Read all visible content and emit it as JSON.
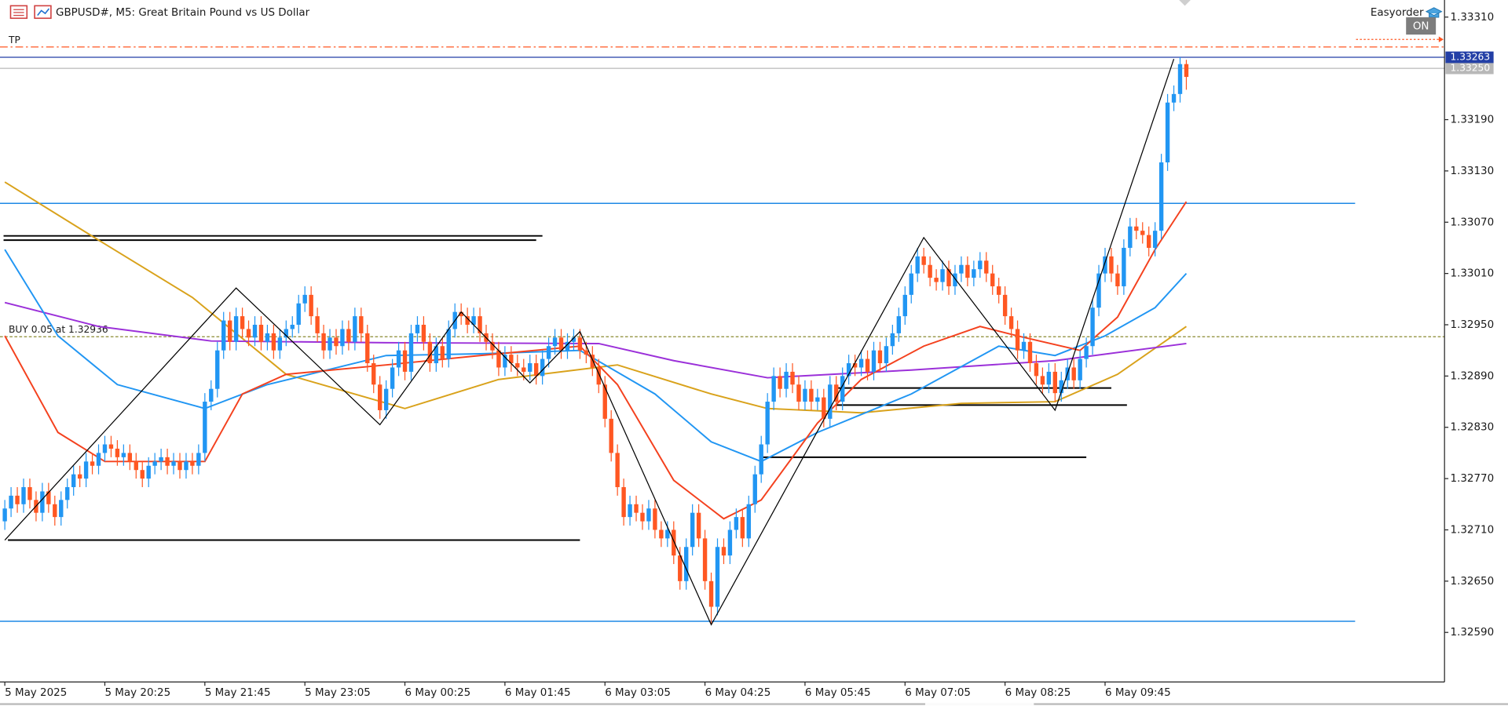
{
  "header": {
    "symbol_title": "GBPUSD#, M5:  Great Britain Pound vs US Dollar",
    "plugin": "Easyorder",
    "toggle": "ON"
  },
  "chart_data": {
    "type": "candlestick",
    "xlim": [
      -0.77,
      230.3
    ],
    "ylim": [
      1.32532,
      1.3333
    ],
    "xticks": [
      {
        "value": 0,
        "label": "5 May 2025"
      },
      {
        "value": 16,
        "label": "5 May 20:25"
      },
      {
        "value": 32,
        "label": "5 May 21:45"
      },
      {
        "value": 48,
        "label": "5 May 23:05"
      },
      {
        "value": 64,
        "label": "6 May 00:25"
      },
      {
        "value": 80,
        "label": "6 May 01:45"
      },
      {
        "value": 96,
        "label": "6 May 03:05"
      },
      {
        "value": 112,
        "label": "6 May 04:25"
      },
      {
        "value": 128,
        "label": "6 May 05:45"
      },
      {
        "value": 144,
        "label": "6 May 07:05"
      },
      {
        "value": 160,
        "label": "6 May 08:25"
      },
      {
        "value": 176,
        "label": "6 May 09:45"
      }
    ],
    "yticks": [
      {
        "value": 1.3331,
        "label": "1.33310"
      },
      {
        "value": 1.3319,
        "label": "1.33190"
      },
      {
        "value": 1.3313,
        "label": "1.33130"
      },
      {
        "value": 1.3307,
        "label": "1.33070"
      },
      {
        "value": 1.3301,
        "label": "1.33010"
      },
      {
        "value": 1.3295,
        "label": "1.32950"
      },
      {
        "value": 1.3289,
        "label": "1.32890"
      },
      {
        "value": 1.3283,
        "label": "1.32830"
      },
      {
        "value": 1.3277,
        "label": "1.32770"
      },
      {
        "value": 1.3271,
        "label": "1.32710"
      },
      {
        "value": 1.3265,
        "label": "1.32650"
      },
      {
        "value": 1.3259,
        "label": "1.32590"
      }
    ],
    "up_color": "#2196f3",
    "down_color": "#ff5722",
    "open": [
      1.3272,
      1.32735,
      1.3275,
      1.3274,
      1.3276,
      1.32745,
      1.3273,
      1.32755,
      1.3274,
      1.32725,
      1.32745,
      1.3276,
      1.32775,
      1.3277,
      1.3279,
      1.32785,
      1.328,
      1.3281,
      1.32805,
      1.32795,
      1.328,
      1.3279,
      1.3278,
      1.3277,
      1.32785,
      1.3279,
      1.32795,
      1.32785,
      1.3279,
      1.3278,
      1.3279,
      1.32785,
      1.328,
      1.3286,
      1.32875,
      1.3292,
      1.32955,
      1.3293,
      1.3296,
      1.32945,
      1.32935,
      1.3295,
      1.3293,
      1.3294,
      1.3292,
      1.32935,
      1.32945,
      1.3295,
      1.32975,
      1.32985,
      1.3296,
      1.3294,
      1.3292,
      1.32935,
      1.32925,
      1.32945,
      1.3293,
      1.3296,
      1.3294,
      1.32905,
      1.3288,
      1.3285,
      1.32875,
      1.329,
      1.3292,
      1.32895,
      1.3294,
      1.3295,
      1.3293,
      1.32905,
      1.32925,
      1.3291,
      1.32945,
      1.32965,
      1.3296,
      1.3295,
      1.3296,
      1.3294,
      1.3293,
      1.3292,
      1.329,
      1.32915,
      1.32905,
      1.329,
      1.32895,
      1.32905,
      1.3289,
      1.3291,
      1.32925,
      1.32935,
      1.3292,
      1.3293,
      1.32935,
      1.3292,
      1.32915,
      1.329,
      1.3288,
      1.3284,
      1.328,
      1.3276,
      1.32725,
      1.3274,
      1.3273,
      1.3272,
      1.32735,
      1.3271,
      1.327,
      1.3271,
      1.3268,
      1.3265,
      1.3269,
      1.3273,
      1.327,
      1.3265,
      1.3262,
      1.3269,
      1.3268,
      1.3271,
      1.32725,
      1.327,
      1.3274,
      1.32775,
      1.3281,
      1.3286,
      1.3289,
      1.32875,
      1.32895,
      1.3288,
      1.3286,
      1.32875,
      1.3286,
      1.32865,
      1.3284,
      1.3288,
      1.3286,
      1.3289,
      1.32905,
      1.329,
      1.3291,
      1.32895,
      1.3292,
      1.32905,
      1.32925,
      1.3294,
      1.3296,
      1.32985,
      1.3301,
      1.3303,
      1.3302,
      1.33005,
      1.33,
      1.33015,
      1.32995,
      1.3301,
      1.3302,
      1.33005,
      1.33015,
      1.33025,
      1.3301,
      1.32995,
      1.32985,
      1.3296,
      1.32945,
      1.3292,
      1.3293,
      1.32905,
      1.3289,
      1.3288,
      1.32895,
      1.3287,
      1.32885,
      1.329,
      1.32885,
      1.3291,
      1.32925,
      1.3297,
      1.3301,
      1.3303,
      1.3301,
      1.32995,
      1.3304,
      1.33065,
      1.3306,
      1.33055,
      1.3304,
      1.3306,
      1.3314,
      1.3321,
      1.3322,
      1.33255
    ],
    "high": [
      1.32745,
      1.3276,
      1.3276,
      1.3277,
      1.3277,
      1.32755,
      1.32765,
      1.32765,
      1.3275,
      1.32755,
      1.3277,
      1.32785,
      1.32785,
      1.328,
      1.328,
      1.3281,
      1.3282,
      1.3282,
      1.32815,
      1.3281,
      1.3281,
      1.328,
      1.3279,
      1.32795,
      1.328,
      1.32805,
      1.32805,
      1.328,
      1.328,
      1.328,
      1.328,
      1.3281,
      1.3287,
      1.32885,
      1.3293,
      1.32965,
      1.32965,
      1.3297,
      1.3297,
      1.32955,
      1.3296,
      1.3296,
      1.3295,
      1.3295,
      1.32945,
      1.32955,
      1.3296,
      1.32985,
      1.32995,
      1.32995,
      1.3297,
      1.3295,
      1.32945,
      1.32945,
      1.32955,
      1.32955,
      1.3297,
      1.3297,
      1.3295,
      1.32915,
      1.3289,
      1.32885,
      1.3291,
      1.3293,
      1.3293,
      1.3295,
      1.3296,
      1.3296,
      1.3294,
      1.32935,
      1.32935,
      1.32955,
      1.32975,
      1.32975,
      1.3297,
      1.3297,
      1.3297,
      1.3295,
      1.3294,
      1.3293,
      1.32925,
      1.32925,
      1.32915,
      1.3291,
      1.32915,
      1.32915,
      1.3292,
      1.32935,
      1.32945,
      1.32945,
      1.3294,
      1.32945,
      1.32945,
      1.3293,
      1.32925,
      1.3291,
      1.3289,
      1.3285,
      1.3281,
      1.3277,
      1.3275,
      1.3275,
      1.3274,
      1.32745,
      1.32745,
      1.3272,
      1.3272,
      1.3272,
      1.3269,
      1.327,
      1.3274,
      1.3274,
      1.3271,
      1.3266,
      1.327,
      1.327,
      1.3272,
      1.32735,
      1.32735,
      1.3275,
      1.32785,
      1.3282,
      1.3287,
      1.329,
      1.329,
      1.32905,
      1.32905,
      1.3289,
      1.32885,
      1.32885,
      1.32875,
      1.32875,
      1.3289,
      1.3289,
      1.329,
      1.32915,
      1.32915,
      1.3292,
      1.3292,
      1.3293,
      1.3293,
      1.32935,
      1.3295,
      1.3297,
      1.32995,
      1.3302,
      1.3304,
      1.3304,
      1.3303,
      1.33015,
      1.33025,
      1.33025,
      1.3302,
      1.3303,
      1.3303,
      1.33025,
      1.33035,
      1.33035,
      1.3302,
      1.33005,
      1.32995,
      1.3297,
      1.32955,
      1.3294,
      1.3294,
      1.32915,
      1.329,
      1.32905,
      1.32905,
      1.32895,
      1.3291,
      1.3291,
      1.3292,
      1.32935,
      1.3298,
      1.3302,
      1.3304,
      1.3304,
      1.3302,
      1.3305,
      1.33075,
      1.33075,
      1.3307,
      1.33065,
      1.3307,
      1.3315,
      1.3322,
      1.3323,
      1.33263,
      1.3326
    ],
    "low": [
      1.3271,
      1.32725,
      1.3273,
      1.3273,
      1.32735,
      1.3272,
      1.3272,
      1.3273,
      1.32715,
      1.32715,
      1.32735,
      1.3275,
      1.3276,
      1.3276,
      1.32775,
      1.32775,
      1.3279,
      1.32795,
      1.32785,
      1.32785,
      1.3278,
      1.3277,
      1.3276,
      1.3276,
      1.32775,
      1.3278,
      1.32775,
      1.32775,
      1.3277,
      1.3277,
      1.32775,
      1.32775,
      1.3279,
      1.3285,
      1.32865,
      1.3291,
      1.3292,
      1.3292,
      1.32935,
      1.32925,
      1.32925,
      1.3292,
      1.3292,
      1.3291,
      1.3291,
      1.32925,
      1.32935,
      1.3294,
      1.32965,
      1.3295,
      1.3293,
      1.3291,
      1.3291,
      1.32915,
      1.32915,
      1.3292,
      1.3292,
      1.3293,
      1.32895,
      1.3287,
      1.3284,
      1.3284,
      1.32865,
      1.3289,
      1.32885,
      1.32885,
      1.3293,
      1.3292,
      1.32895,
      1.32895,
      1.329,
      1.329,
      1.32935,
      1.3295,
      1.3294,
      1.3294,
      1.3293,
      1.3292,
      1.3291,
      1.3289,
      1.3289,
      1.32895,
      1.3289,
      1.32885,
      1.32885,
      1.3288,
      1.3288,
      1.329,
      1.32915,
      1.3291,
      1.3291,
      1.3292,
      1.3291,
      1.32905,
      1.3289,
      1.3287,
      1.3283,
      1.3279,
      1.3275,
      1.32715,
      1.32715,
      1.3272,
      1.3271,
      1.3271,
      1.327,
      1.3269,
      1.3269,
      1.3267,
      1.3264,
      1.3264,
      1.3268,
      1.3269,
      1.3264,
      1.326,
      1.3261,
      1.3267,
      1.3267,
      1.327,
      1.3269,
      1.3269,
      1.3273,
      1.32765,
      1.328,
      1.3285,
      1.32865,
      1.32865,
      1.3287,
      1.3285,
      1.3285,
      1.3285,
      1.3285,
      1.3283,
      1.3283,
      1.3285,
      1.3285,
      1.3288,
      1.3289,
      1.3289,
      1.32885,
      1.32885,
      1.32895,
      1.32895,
      1.32915,
      1.3293,
      1.3295,
      1.32975,
      1.33,
      1.3301,
      1.32995,
      1.3299,
      1.3299,
      1.32985,
      1.32985,
      1.33,
      1.32995,
      1.32995,
      1.33005,
      1.33,
      1.32985,
      1.32975,
      1.3295,
      1.32935,
      1.3291,
      1.3291,
      1.32895,
      1.3288,
      1.3287,
      1.3287,
      1.3286,
      1.3286,
      1.32875,
      1.32875,
      1.32875,
      1.329,
      1.32915,
      1.3296,
      1.33,
      1.33,
      1.32985,
      1.32985,
      1.3303,
      1.3305,
      1.33045,
      1.3303,
      1.3303,
      1.3305,
      1.3313,
      1.332,
      1.3321,
      1.33225
    ],
    "close": [
      1.32735,
      1.3275,
      1.3274,
      1.3276,
      1.32745,
      1.3273,
      1.32755,
      1.3274,
      1.32725,
      1.32745,
      1.3276,
      1.32775,
      1.3277,
      1.3279,
      1.32785,
      1.328,
      1.3281,
      1.32805,
      1.32795,
      1.328,
      1.3279,
      1.3278,
      1.3277,
      1.32785,
      1.3279,
      1.32795,
      1.32785,
      1.3279,
      1.3278,
      1.3279,
      1.32785,
      1.328,
      1.3286,
      1.32875,
      1.3292,
      1.32955,
      1.3293,
      1.3296,
      1.32945,
      1.32935,
      1.3295,
      1.3293,
      1.3294,
      1.3292,
      1.32935,
      1.32945,
      1.3295,
      1.32975,
      1.32985,
      1.3296,
      1.3294,
      1.3292,
      1.32935,
      1.32925,
      1.32945,
      1.3293,
      1.3296,
      1.3294,
      1.32905,
      1.3288,
      1.3285,
      1.32875,
      1.329,
      1.3292,
      1.32895,
      1.3294,
      1.3295,
      1.3293,
      1.32905,
      1.32925,
      1.3291,
      1.32945,
      1.32965,
      1.3296,
      1.3295,
      1.3296,
      1.3294,
      1.3293,
      1.3292,
      1.329,
      1.32915,
      1.32905,
      1.329,
      1.32895,
      1.32905,
      1.3289,
      1.3291,
      1.32925,
      1.32935,
      1.3292,
      1.3293,
      1.32935,
      1.3292,
      1.32915,
      1.329,
      1.3288,
      1.3284,
      1.328,
      1.3276,
      1.32725,
      1.3274,
      1.3273,
      1.3272,
      1.32735,
      1.3271,
      1.327,
      1.3271,
      1.3268,
      1.3265,
      1.3269,
      1.3273,
      1.327,
      1.3265,
      1.3262,
      1.3269,
      1.3268,
      1.3271,
      1.32725,
      1.327,
      1.3274,
      1.32775,
      1.3281,
      1.3286,
      1.3289,
      1.32875,
      1.32895,
      1.3288,
      1.3286,
      1.32875,
      1.3286,
      1.32865,
      1.3284,
      1.3288,
      1.3286,
      1.3289,
      1.32905,
      1.329,
      1.3291,
      1.32895,
      1.3292,
      1.32905,
      1.32925,
      1.3294,
      1.3296,
      1.32985,
      1.3301,
      1.3303,
      1.3302,
      1.33005,
      1.33,
      1.33015,
      1.32995,
      1.3301,
      1.3302,
      1.33005,
      1.33015,
      1.33025,
      1.3301,
      1.32995,
      1.32985,
      1.3296,
      1.32945,
      1.3292,
      1.3293,
      1.32905,
      1.3289,
      1.3288,
      1.32895,
      1.3287,
      1.32885,
      1.329,
      1.32885,
      1.3291,
      1.32925,
      1.3297,
      1.3301,
      1.3303,
      1.3301,
      1.32995,
      1.3304,
      1.33065,
      1.3306,
      1.33055,
      1.3304,
      1.3306,
      1.3314,
      1.3321,
      1.3322,
      1.33255,
      1.3324
    ],
    "indicators": [
      {
        "color": "#d9a21b",
        "x": [
          0,
          15,
          30,
          45,
          64,
          79,
          98,
          113,
          122,
          137,
          153,
          168,
          178,
          189
        ],
        "values": [
          1.33117,
          1.33049,
          1.32982,
          1.32892,
          1.32852,
          1.32886,
          1.32903,
          1.32869,
          1.32852,
          1.32847,
          1.32858,
          1.3286,
          1.32892,
          1.32948
        ]
      },
      {
        "color": "#9b30d9",
        "x": [
          0,
          15,
          33,
          61,
          95,
          107,
          122,
          145,
          168,
          189
        ],
        "values": [
          1.32976,
          1.32948,
          1.32931,
          1.32929,
          1.32928,
          1.32908,
          1.32888,
          1.32897,
          1.32908,
          1.32928
        ]
      },
      {
        "color": "#2196f3",
        "x": [
          0,
          8.5,
          18,
          32,
          42,
          61,
          76,
          92,
          104,
          113,
          121,
          130,
          145,
          159,
          168,
          176,
          184,
          189
        ],
        "values": [
          1.33038,
          1.32937,
          1.3288,
          1.32852,
          1.3288,
          1.32914,
          1.32916,
          1.3292,
          1.32869,
          1.32813,
          1.3279,
          1.32824,
          1.32869,
          1.32925,
          1.32914,
          1.32937,
          1.3297,
          1.3301
        ]
      },
      {
        "color": "#f4411e",
        "x": [
          0,
          8.5,
          16,
          32,
          38,
          45,
          61,
          76,
          92,
          98,
          107,
          115,
          121,
          130,
          137,
          147,
          156,
          162,
          172,
          178,
          184,
          189
        ],
        "values": [
          1.32937,
          1.32824,
          1.3279,
          1.3279,
          1.32869,
          1.32892,
          1.32903,
          1.32914,
          1.32925,
          1.3288,
          1.32768,
          1.32723,
          1.32745,
          1.32835,
          1.32886,
          1.32925,
          1.32948,
          1.32937,
          1.3292,
          1.32959,
          1.33038,
          1.33094
        ]
      }
    ],
    "zigzag": {
      "color": "#000000",
      "x": [
        0,
        37,
        60,
        73,
        84,
        92,
        113,
        147,
        168,
        187
      ],
      "values": [
        1.32698,
        1.32993,
        1.32833,
        1.32965,
        1.32882,
        1.32942,
        1.32599,
        1.33052,
        1.3285,
        1.33261
      ]
    },
    "levels": [
      {
        "value": 1.33092,
        "color": "#1e88e5",
        "from": -0.77,
        "to": 216
      },
      {
        "value": 1.32603,
        "color": "#1e88e5",
        "from": -0.77,
        "to": 216
      },
      {
        "value": 1.33054,
        "color": "#000000",
        "from": -0.2,
        "to": 86
      },
      {
        "value": 1.33049,
        "color": "#000000",
        "from": -0.2,
        "to": 85
      },
      {
        "value": 1.32698,
        "color": "#000000",
        "from": 0.5,
        "to": 92
      },
      {
        "value": 1.32876,
        "color": "#000000",
        "from": 133,
        "to": 177
      },
      {
        "value": 1.32856,
        "color": "#000000",
        "from": 133,
        "to": 179.5
      },
      {
        "value": 1.32795,
        "color": "#000000",
        "from": 121,
        "to": 173
      }
    ],
    "tp": {
      "label": "TP",
      "value": 1.33275,
      "color": "#ff5722"
    },
    "order": {
      "label": "BUY 0.05 at 1.32936",
      "value": 1.32936,
      "color": "#8a8a30"
    },
    "bid": {
      "value": 1.33263,
      "color": "#233fa6"
    },
    "ask": {
      "value": 1.3325,
      "label": "1.33250",
      "color": "#b8b8b8"
    }
  }
}
